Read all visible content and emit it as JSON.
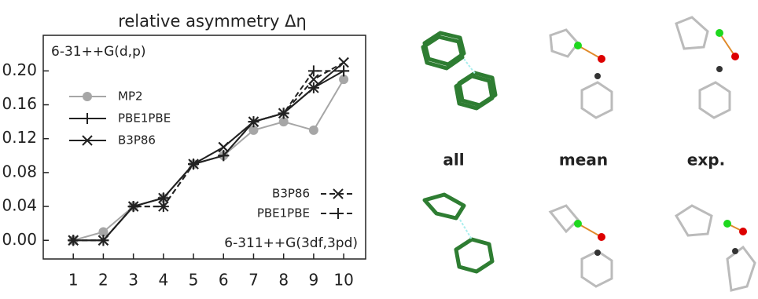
{
  "chart_data": {
    "type": "line",
    "title": "relative asymmetry Δη",
    "x": [
      1,
      2,
      3,
      4,
      5,
      6,
      7,
      8,
      9,
      10
    ],
    "xlim": [
      0.0,
      10.73
    ],
    "xticks": [
      1,
      2,
      3,
      4,
      5,
      6,
      7,
      8,
      9,
      10
    ],
    "ylim": [
      -0.022,
      0.242
    ],
    "yticks": [
      {
        "value": 0,
        "label": "0.00"
      },
      {
        "value": 0.04,
        "label": "0.04"
      },
      {
        "value": 0.08,
        "label": "0.08"
      },
      {
        "value": 0.12,
        "label": "0.12"
      },
      {
        "value": 0.16,
        "label": "0.16"
      },
      {
        "value": 0.2,
        "label": "0.20"
      }
    ],
    "groups": [
      {
        "name": "6-31++G(d,p)",
        "series": [
          {
            "name": "MP2",
            "color": "#a6a6a6",
            "marker": "circle",
            "dash": false,
            "values": [
              0,
              0.01,
              0.04,
              0.05,
              0.09,
              0.1,
              0.13,
              0.14,
              0.13,
              0.19
            ]
          },
          {
            "name": "PBE1PBE",
            "color": "#222222",
            "marker": "plus",
            "dash": false,
            "values": [
              0,
              0,
              0.04,
              0.05,
              0.09,
              0.1,
              0.14,
              0.15,
              0.18,
              0.2
            ]
          },
          {
            "name": "B3P86",
            "color": "#222222",
            "marker": "x",
            "dash": false,
            "values": [
              0,
              0,
              0.04,
              0.05,
              0.09,
              0.11,
              0.14,
              0.15,
              0.18,
              0.21
            ]
          }
        ]
      },
      {
        "name": "6-311++G(3df,3pd)",
        "series": [
          {
            "name": "B3P86",
            "color": "#222222",
            "marker": "x",
            "dash": true,
            "values": [
              0,
              0,
              0.04,
              0.04,
              0.09,
              0.11,
              0.14,
              0.15,
              0.19,
              0.21
            ]
          },
          {
            "name": "PBE1PBE",
            "color": "#222222",
            "marker": "plus",
            "dash": true,
            "values": [
              0,
              0,
              0.04,
              0.04,
              0.09,
              0.1,
              0.14,
              0.15,
              0.2,
              0.2
            ]
          }
        ]
      }
    ]
  },
  "image_labels": [
    "all",
    "mean",
    "exp."
  ]
}
